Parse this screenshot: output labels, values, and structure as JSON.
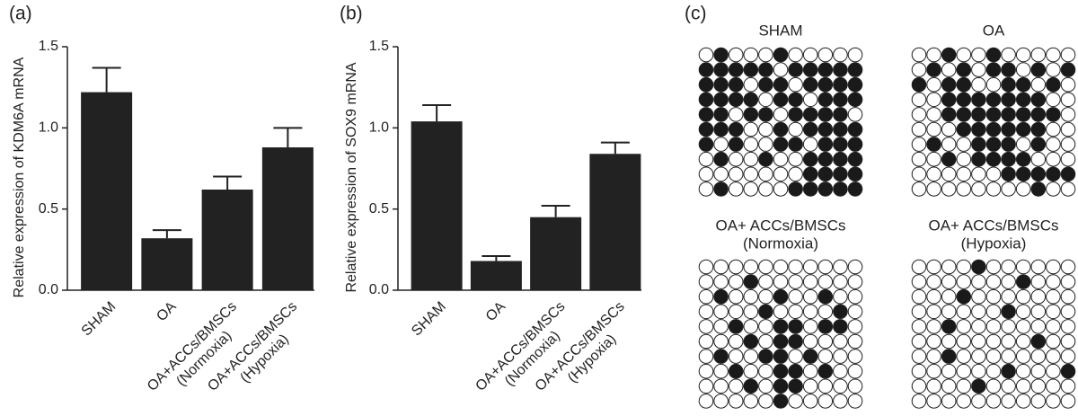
{
  "chart_data": [
    {
      "type": "bar",
      "panel": "(a)",
      "ylabel": "Relative expression of KDM6A mRNA",
      "categories": [
        [
          "SHAM"
        ],
        [
          "OA"
        ],
        [
          "OA+ACCs/BMSCs",
          "(Normoxia)"
        ],
        [
          "OA+ACCs/BMSCs",
          "(Hypoxia)"
        ]
      ],
      "values": [
        1.22,
        0.32,
        0.62,
        0.88
      ],
      "errors": [
        0.15,
        0.05,
        0.08,
        0.12
      ],
      "color": "#222222",
      "ylim": [
        0,
        1.5
      ],
      "yticks": [
        {
          "value": 0,
          "label": "0.0"
        },
        0.5,
        {
          "value": 1,
          "label": "1.0"
        },
        1.5
      ]
    },
    {
      "type": "bar",
      "panel": "(b)",
      "ylabel": "Relative expression of SOX9 mRNA",
      "categories": [
        [
          "SHAM"
        ],
        [
          "OA"
        ],
        [
          "OA+ACCs/BMSCs",
          "(Normoxia)"
        ],
        [
          "OA+ACCs/BMSCs",
          "(Hypoxia)"
        ]
      ],
      "values": [
        1.04,
        0.18,
        0.45,
        0.84
      ],
      "errors": [
        0.1,
        0.03,
        0.07,
        0.07
      ],
      "color": "#222222",
      "ylim": [
        0,
        1.5
      ],
      "yticks": [
        {
          "value": 0,
          "label": "0.0"
        },
        0.5,
        {
          "value": 1,
          "label": "1.0"
        },
        1.5
      ]
    }
  ],
  "methylation": {
    "panel": "(c)",
    "grids": [
      {
        "title": [
          "SHAM"
        ],
        "rows": [
          [
            0,
            1,
            0,
            0,
            0,
            1,
            0,
            0,
            0,
            0,
            0
          ],
          [
            1,
            1,
            1,
            1,
            1,
            0,
            1,
            1,
            1,
            1,
            1
          ],
          [
            1,
            1,
            1,
            0,
            1,
            1,
            0,
            1,
            1,
            1,
            1
          ],
          [
            1,
            1,
            1,
            1,
            0,
            1,
            1,
            0,
            1,
            1,
            1
          ],
          [
            1,
            1,
            0,
            1,
            1,
            0,
            1,
            1,
            1,
            1,
            0
          ],
          [
            1,
            1,
            1,
            0,
            0,
            1,
            0,
            1,
            1,
            1,
            1
          ],
          [
            1,
            0,
            1,
            0,
            0,
            1,
            1,
            0,
            1,
            1,
            1
          ],
          [
            0,
            1,
            0,
            0,
            1,
            0,
            0,
            1,
            1,
            1,
            1
          ],
          [
            0,
            0,
            0,
            0,
            0,
            0,
            0,
            1,
            1,
            1,
            1
          ],
          [
            0,
            1,
            0,
            0,
            0,
            0,
            1,
            1,
            1,
            1,
            1
          ]
        ]
      },
      {
        "title": [
          "OA"
        ],
        "rows": [
          [
            0,
            0,
            1,
            0,
            0,
            1,
            0,
            0,
            0,
            0,
            0
          ],
          [
            0,
            1,
            0,
            1,
            0,
            1,
            1,
            0,
            1,
            0,
            1
          ],
          [
            1,
            0,
            1,
            1,
            0,
            0,
            1,
            1,
            0,
            1,
            0
          ],
          [
            0,
            0,
            1,
            1,
            1,
            1,
            1,
            1,
            1,
            0,
            0
          ],
          [
            0,
            0,
            1,
            1,
            1,
            1,
            1,
            1,
            1,
            1,
            0
          ],
          [
            0,
            0,
            0,
            1,
            1,
            1,
            1,
            1,
            1,
            0,
            0
          ],
          [
            0,
            1,
            0,
            0,
            1,
            1,
            1,
            0,
            1,
            0,
            0
          ],
          [
            0,
            0,
            1,
            0,
            1,
            1,
            1,
            1,
            0,
            0,
            0
          ],
          [
            0,
            0,
            0,
            0,
            0,
            0,
            1,
            1,
            1,
            1,
            1
          ],
          [
            0,
            0,
            0,
            0,
            0,
            0,
            0,
            0,
            1,
            0,
            0
          ]
        ]
      },
      {
        "title": [
          "OA+ ACCs/BMSCs",
          "(Normoxia)"
        ],
        "rows": [
          [
            0,
            0,
            0,
            0,
            0,
            0,
            0,
            0,
            0,
            0,
            0
          ],
          [
            0,
            0,
            0,
            1,
            0,
            0,
            0,
            0,
            0,
            0,
            0
          ],
          [
            0,
            1,
            0,
            0,
            0,
            1,
            0,
            0,
            1,
            0,
            0
          ],
          [
            0,
            0,
            0,
            0,
            1,
            0,
            0,
            0,
            0,
            1,
            0
          ],
          [
            0,
            0,
            1,
            0,
            0,
            1,
            1,
            0,
            1,
            1,
            0
          ],
          [
            0,
            0,
            0,
            1,
            0,
            1,
            1,
            0,
            0,
            0,
            0
          ],
          [
            0,
            1,
            0,
            0,
            1,
            1,
            0,
            1,
            0,
            0,
            0
          ],
          [
            0,
            0,
            1,
            0,
            0,
            1,
            1,
            0,
            1,
            0,
            0
          ],
          [
            0,
            0,
            0,
            1,
            0,
            1,
            1,
            0,
            0,
            0,
            0
          ],
          [
            0,
            0,
            0,
            0,
            0,
            1,
            0,
            0,
            0,
            0,
            0
          ]
        ]
      },
      {
        "title": [
          "OA+ ACCs/BMSCs",
          "(Hypoxia)"
        ],
        "rows": [
          [
            0,
            0,
            0,
            0,
            1,
            0,
            0,
            0,
            0,
            0,
            0
          ],
          [
            0,
            0,
            0,
            0,
            0,
            0,
            0,
            1,
            0,
            0,
            0
          ],
          [
            0,
            0,
            0,
            1,
            0,
            0,
            0,
            0,
            0,
            0,
            0
          ],
          [
            0,
            0,
            0,
            0,
            0,
            0,
            1,
            0,
            0,
            0,
            0
          ],
          [
            0,
            0,
            1,
            0,
            0,
            0,
            0,
            0,
            0,
            0,
            0
          ],
          [
            0,
            0,
            0,
            0,
            0,
            0,
            0,
            0,
            1,
            0,
            0
          ],
          [
            0,
            0,
            1,
            0,
            0,
            0,
            0,
            0,
            0,
            0,
            0
          ],
          [
            0,
            0,
            0,
            0,
            0,
            0,
            1,
            0,
            0,
            0,
            1
          ],
          [
            0,
            0,
            0,
            0,
            1,
            0,
            0,
            0,
            0,
            0,
            0
          ],
          [
            0,
            0,
            0,
            0,
            0,
            0,
            0,
            0,
            0,
            0,
            0
          ]
        ]
      }
    ]
  }
}
